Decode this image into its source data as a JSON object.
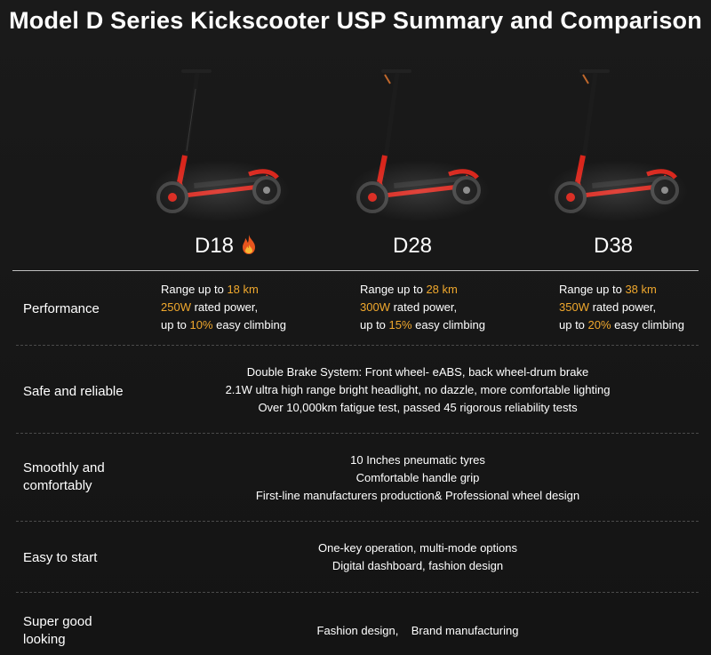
{
  "title": "Model D Series Kickscooter USP Summary and Comparison",
  "colors": {
    "background": "#161616",
    "highlight": "#f0a82d",
    "scooter_red": "#d9261c"
  },
  "models": [
    {
      "name": "D18",
      "badge_icon": "fire-icon"
    },
    {
      "name": "D28"
    },
    {
      "name": "D38"
    }
  ],
  "rows": {
    "performance": {
      "label": "Performance",
      "models": [
        {
          "range_prefix": "Range up to ",
          "range": "18 km",
          "power": "250W",
          "power_suffix": " rated power,",
          "climb_prefix": "up to ",
          "climb": "10%",
          "climb_suffix": " easy climbing"
        },
        {
          "range_prefix": "Range up to ",
          "range": "28 km",
          "power": "300W",
          "power_suffix": " rated power,",
          "climb_prefix": "up to ",
          "climb": "15%",
          "climb_suffix": " easy climbing"
        },
        {
          "range_prefix": "Range up to ",
          "range": "38 km",
          "power": "350W",
          "power_suffix": " rated power,",
          "climb_prefix": "up to ",
          "climb": "20%",
          "climb_suffix": " easy climbing"
        }
      ]
    },
    "safe": {
      "label": "Safe and reliable",
      "lines": [
        "Double Brake System: Front wheel- eABS, back wheel-drum brake",
        "2.1W ultra high range bright headlight, no dazzle, more comfortable lighting",
        "Over 10,000km fatigue test, passed 45 rigorous reliability tests"
      ]
    },
    "smooth": {
      "label_line1": "Smoothly and",
      "label_line2": "comfortably",
      "lines": [
        "10 Inches pneumatic tyres",
        "Comfortable handle grip",
        "First-line manufacturers production& Professional wheel design"
      ]
    },
    "easy": {
      "label": "Easy to start",
      "lines": [
        "One-key operation, multi-mode options",
        "Digital dashboard, fashion design"
      ]
    },
    "looking": {
      "label_line1": "Super good",
      "label_line2": "looking",
      "text": "Fashion design,    Brand manufacturing"
    }
  }
}
